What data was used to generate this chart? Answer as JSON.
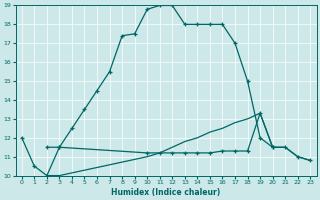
{
  "xlabel": "Humidex (Indice chaleur)",
  "bg_color": "#cce8e8",
  "line_color": "#006666",
  "xlim": [
    -0.5,
    23.5
  ],
  "ylim": [
    10,
    19
  ],
  "xticks": [
    0,
    1,
    2,
    3,
    4,
    5,
    6,
    7,
    8,
    9,
    10,
    11,
    12,
    13,
    14,
    15,
    16,
    17,
    18,
    19,
    20,
    21,
    22,
    23
  ],
  "yticks": [
    10,
    11,
    12,
    13,
    14,
    15,
    16,
    17,
    18,
    19
  ],
  "line1_x": [
    0,
    1,
    2,
    3,
    4,
    5,
    6,
    7,
    8,
    9,
    10,
    11,
    12,
    13,
    14,
    15,
    16,
    17,
    18,
    19,
    20
  ],
  "line1_y": [
    12.0,
    10.5,
    10.0,
    11.5,
    12.5,
    13.5,
    14.5,
    15.5,
    17.4,
    17.5,
    18.8,
    19.0,
    19.0,
    18.0,
    18.0,
    18.0,
    18.0,
    17.0,
    15.0,
    12.0,
    11.5
  ],
  "line2_x": [
    2,
    3,
    10,
    11,
    12,
    13,
    14,
    15,
    16,
    17,
    18,
    19,
    20,
    21,
    22,
    23
  ],
  "line2_y": [
    11.5,
    11.5,
    11.2,
    11.2,
    11.2,
    11.2,
    11.2,
    11.2,
    11.3,
    11.3,
    11.3,
    13.3,
    11.5,
    11.5,
    11.0,
    10.8
  ],
  "line3_x": [
    2,
    3,
    10,
    11,
    12,
    13,
    14,
    15,
    16,
    17,
    18,
    19,
    20,
    21,
    22,
    23
  ],
  "line3_y": [
    10.0,
    10.0,
    11.0,
    11.2,
    11.5,
    11.8,
    12.0,
    12.3,
    12.5,
    12.8,
    13.0,
    13.3,
    11.5,
    11.5,
    11.0,
    10.8
  ]
}
